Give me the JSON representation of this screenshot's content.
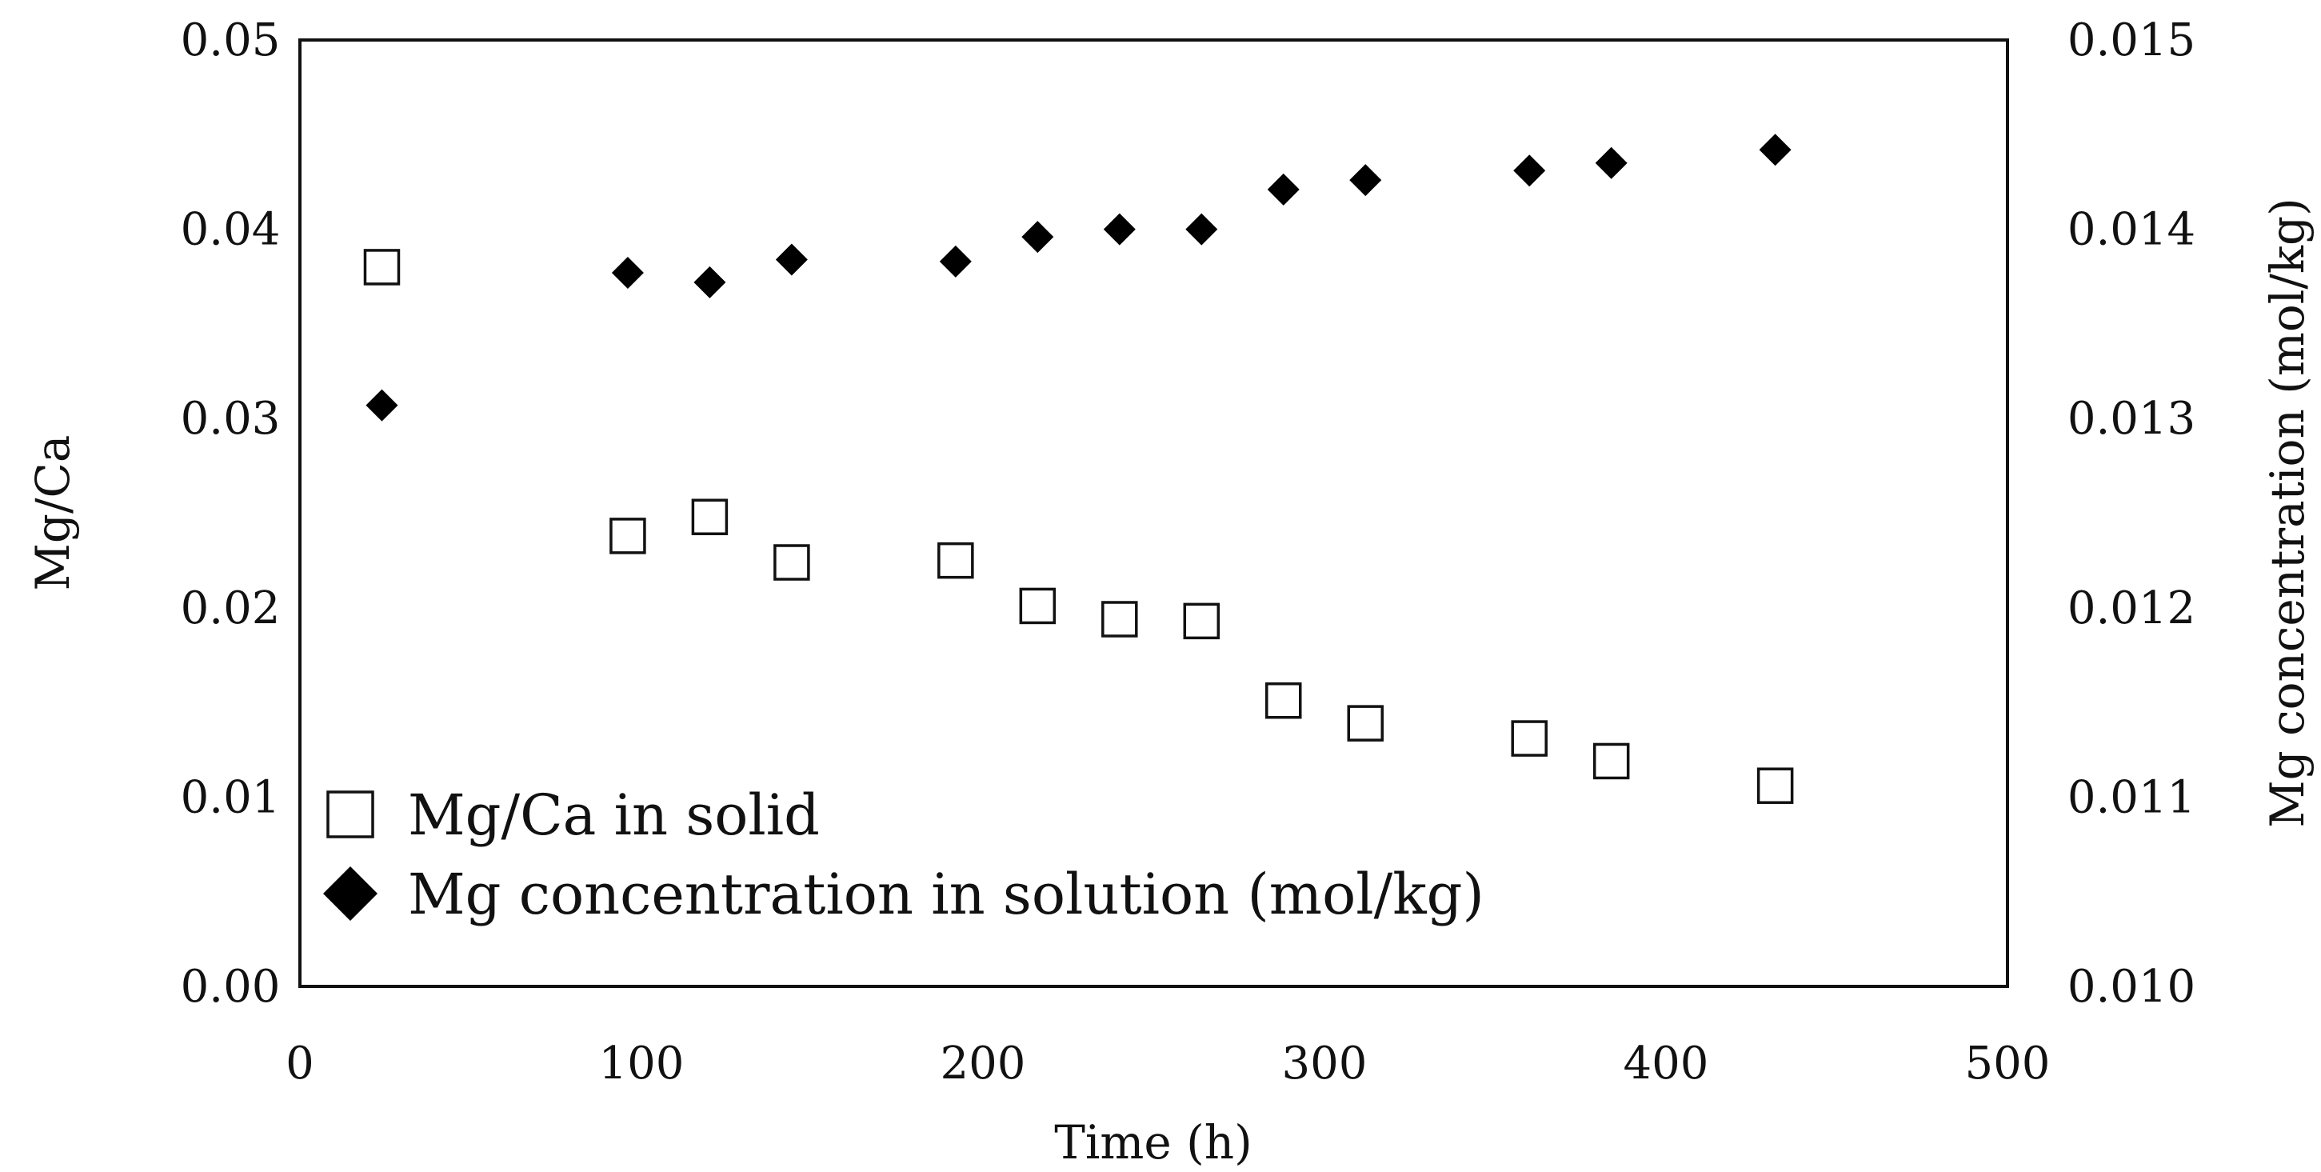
{
  "chart_data": {
    "type": "scatter",
    "title": "",
    "xlabel": "Time (h)",
    "ylabel": "Mg/Ca",
    "y2label": "Mg concentration (mol/kg)",
    "xlim": [
      0,
      500
    ],
    "ylim": [
      0,
      0.05
    ],
    "y2lim": [
      0.01,
      0.015
    ],
    "xticks": [
      "0",
      "100",
      "200",
      "300",
      "400",
      "500"
    ],
    "yticks": [
      "0.00",
      "0.01",
      "0.02",
      "0.03",
      "0.04",
      "0.05"
    ],
    "y2ticks": [
      "0.010",
      "0.011",
      "0.012",
      "0.013",
      "0.014",
      "0.015"
    ],
    "grid": false,
    "legend_position": "bottom-left",
    "series": [
      {
        "name": "Mg/Ca in solid",
        "axis": "left",
        "marker": "open-square",
        "x": [
          24,
          96,
          120,
          144,
          192,
          216,
          240,
          264,
          288,
          312,
          360,
          384,
          432
        ],
        "y": [
          0.038,
          0.0238,
          0.0248,
          0.0224,
          0.0225,
          0.0201,
          0.0194,
          0.0193,
          0.0151,
          0.0139,
          0.0131,
          0.0119,
          0.0106
        ]
      },
      {
        "name": "Mg concentration in solution (mol/kg)",
        "axis": "right",
        "marker": "filled-diamond",
        "x": [
          24,
          96,
          120,
          144,
          192,
          216,
          240,
          264,
          288,
          312,
          360,
          384,
          432
        ],
        "y": [
          0.01307,
          0.01377,
          0.01372,
          0.01384,
          0.01383,
          0.01396,
          0.014,
          0.014,
          0.01421,
          0.01426,
          0.01431,
          0.01435,
          0.01442
        ]
      }
    ]
  }
}
